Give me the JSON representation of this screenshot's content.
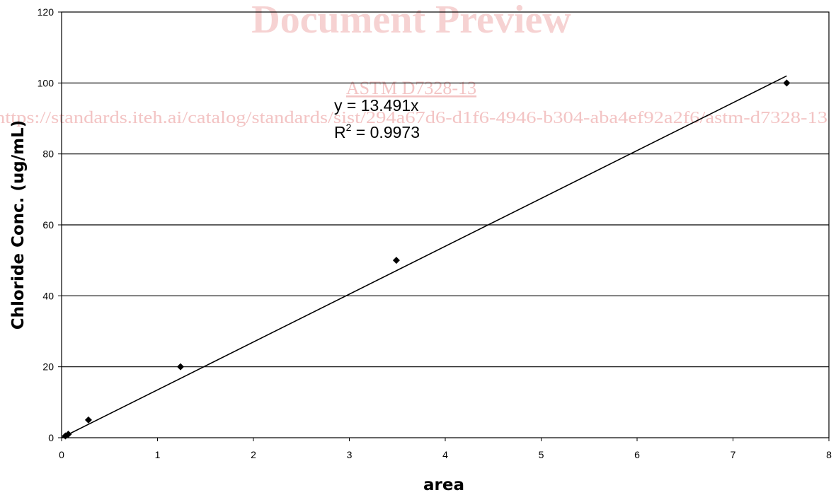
{
  "watermark": {
    "title": "Document Preview",
    "standard": "ASTM D7328-13",
    "url": "https://standards.iteh.ai/catalog/standards/sist/294a67d6-d1f6-4946-b304-aba4ef92a2f6/astm-d7328-13"
  },
  "chart_data": {
    "type": "scatter",
    "xlabel": "area",
    "ylabel": "Chloride Conc. (ug/mL)",
    "xlim": [
      0,
      8
    ],
    "ylim": [
      0,
      120
    ],
    "xticks": [
      "0",
      "1",
      "2",
      "3",
      "4",
      "5",
      "6",
      "7",
      "8"
    ],
    "yticks": [
      "0",
      "20",
      "40",
      "60",
      "80",
      "100",
      "120"
    ],
    "grid": "horizontal",
    "series": [
      {
        "points": [
          {
            "x": 0.04,
            "y": 0.5
          },
          {
            "x": 0.07,
            "y": 1
          },
          {
            "x": 0.28,
            "y": 5
          },
          {
            "x": 1.24,
            "y": 20
          },
          {
            "x": 3.49,
            "y": 50
          },
          {
            "x": 7.56,
            "y": 100
          }
        ],
        "color": "#000000",
        "marker": "diamond"
      }
    ],
    "trendline": {
      "type": "linear",
      "slope": 13.491,
      "intercept": 0,
      "x_range": [
        0,
        7.56
      ],
      "equation": "y = 13.491x",
      "r2_prefix": "R",
      "r2_sup": "2",
      "r2_value": " = 0.9973"
    }
  }
}
